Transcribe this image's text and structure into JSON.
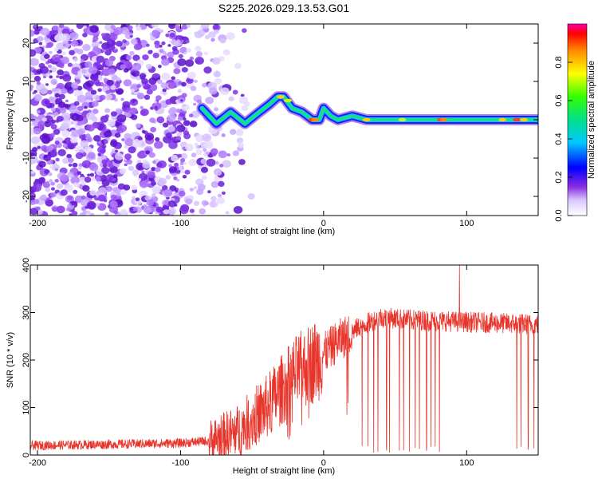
{
  "chart_data": [
    {
      "type": "heatmap",
      "title": "S225.2026.029.13.53.G01",
      "xlabel": "Height of straight line (km)",
      "ylabel": "Frequency (Hz)",
      "xlim": [
        -205,
        150
      ],
      "ylim": [
        -25,
        25
      ],
      "xticks": [
        -200,
        -100,
        0,
        100
      ],
      "yticks": [
        -20,
        -10,
        0,
        10,
        20
      ],
      "colorbar": {
        "label": "Normalized spectral amplitude",
        "range": [
          0,
          1
        ],
        "ticks": [
          0.0,
          0.2,
          0.4,
          0.6,
          0.8
        ]
      },
      "ridge": [
        {
          "x": -85,
          "y": 3
        },
        {
          "x": -75,
          "y": -1
        },
        {
          "x": -65,
          "y": 2
        },
        {
          "x": -55,
          "y": -1
        },
        {
          "x": -45,
          "y": 2
        },
        {
          "x": -38,
          "y": 4
        },
        {
          "x": -32,
          "y": 6
        },
        {
          "x": -28,
          "y": 6
        },
        {
          "x": -22,
          "y": 3
        },
        {
          "x": -15,
          "y": 2
        },
        {
          "x": -8,
          "y": 0
        },
        {
          "x": -3,
          "y": 0
        },
        {
          "x": 0,
          "y": 3
        },
        {
          "x": 5,
          "y": 1
        },
        {
          "x": 10,
          "y": 0
        },
        {
          "x": 20,
          "y": 1
        },
        {
          "x": 30,
          "y": 0
        },
        {
          "x": 50,
          "y": 0
        },
        {
          "x": 80,
          "y": 0
        },
        {
          "x": 100,
          "y": 0
        },
        {
          "x": 120,
          "y": 0
        },
        {
          "x": 150,
          "y": 0
        }
      ]
    },
    {
      "type": "line",
      "xlabel": "Height of straight line (km)",
      "ylabel": "SNR (10 * v/v)",
      "xlim": [
        -205,
        150
      ],
      "ylim": [
        0,
        400
      ],
      "xticks": [
        -200,
        -100,
        0,
        100
      ],
      "yticks": [
        0,
        100,
        200,
        300,
        400
      ],
      "color": "#e8342a",
      "trend": [
        {
          "x": -205,
          "y": 20
        },
        {
          "x": -100,
          "y": 25
        },
        {
          "x": -80,
          "y": 30
        },
        {
          "x": -60,
          "y": 50
        },
        {
          "x": -40,
          "y": 100
        },
        {
          "x": -20,
          "y": 170
        },
        {
          "x": -5,
          "y": 200
        },
        {
          "x": 10,
          "y": 240
        },
        {
          "x": 25,
          "y": 270
        },
        {
          "x": 40,
          "y": 290
        },
        {
          "x": 60,
          "y": 285
        },
        {
          "x": 100,
          "y": 280
        },
        {
          "x": 150,
          "y": 275
        }
      ],
      "spike": {
        "x": 95,
        "y": 400
      },
      "dropouts_x": [
        27,
        31,
        35,
        38,
        44,
        46,
        53,
        56,
        60,
        64,
        67,
        72,
        75,
        78,
        81,
        135,
        138,
        143,
        147
      ]
    }
  ]
}
